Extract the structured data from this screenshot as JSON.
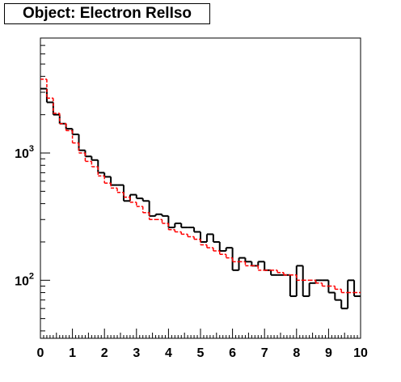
{
  "title": "Object: Electron RelIso",
  "chart_data": {
    "type": "line",
    "title": "Object: Electron RelIso",
    "xlabel": "",
    "ylabel": "",
    "xlim": [
      0,
      10
    ],
    "ylim": [
      35,
      8000
    ],
    "y_scale": "log",
    "x_ticks": [
      "0",
      "1",
      "2",
      "3",
      "4",
      "5",
      "6",
      "7",
      "8",
      "9",
      "10"
    ],
    "y_ticks": [
      {
        "value": 1000,
        "base": "10",
        "exp": "3"
      },
      {
        "value": 100,
        "base": "10",
        "exp": "2"
      }
    ],
    "bin_edges_start": 0,
    "bin_width": 0.2,
    "series": [
      {
        "style": "solid",
        "color": "#000000",
        "values": [
          3200,
          2500,
          2000,
          1700,
          1550,
          1400,
          1050,
          940,
          880,
          700,
          650,
          560,
          560,
          420,
          470,
          440,
          420,
          320,
          330,
          320,
          260,
          280,
          260,
          260,
          240,
          200,
          230,
          200,
          170,
          180,
          120,
          150,
          140,
          130,
          140,
          120,
          110,
          110,
          110,
          75,
          130,
          75,
          95,
          100,
          100,
          80,
          70,
          60,
          100,
          75
        ]
      },
      {
        "style": "dashed",
        "color": "#ff0000",
        "values": [
          3800,
          2700,
          2050,
          1700,
          1500,
          1200,
          1000,
          860,
          780,
          660,
          580,
          530,
          490,
          450,
          410,
          380,
          340,
          300,
          300,
          280,
          250,
          240,
          230,
          220,
          210,
          190,
          180,
          170,
          160,
          150,
          140,
          140,
          130,
          130,
          120,
          120,
          120,
          115,
          110,
          110,
          100,
          100,
          100,
          95,
          90,
          90,
          85,
          80,
          80,
          80
        ]
      }
    ]
  }
}
